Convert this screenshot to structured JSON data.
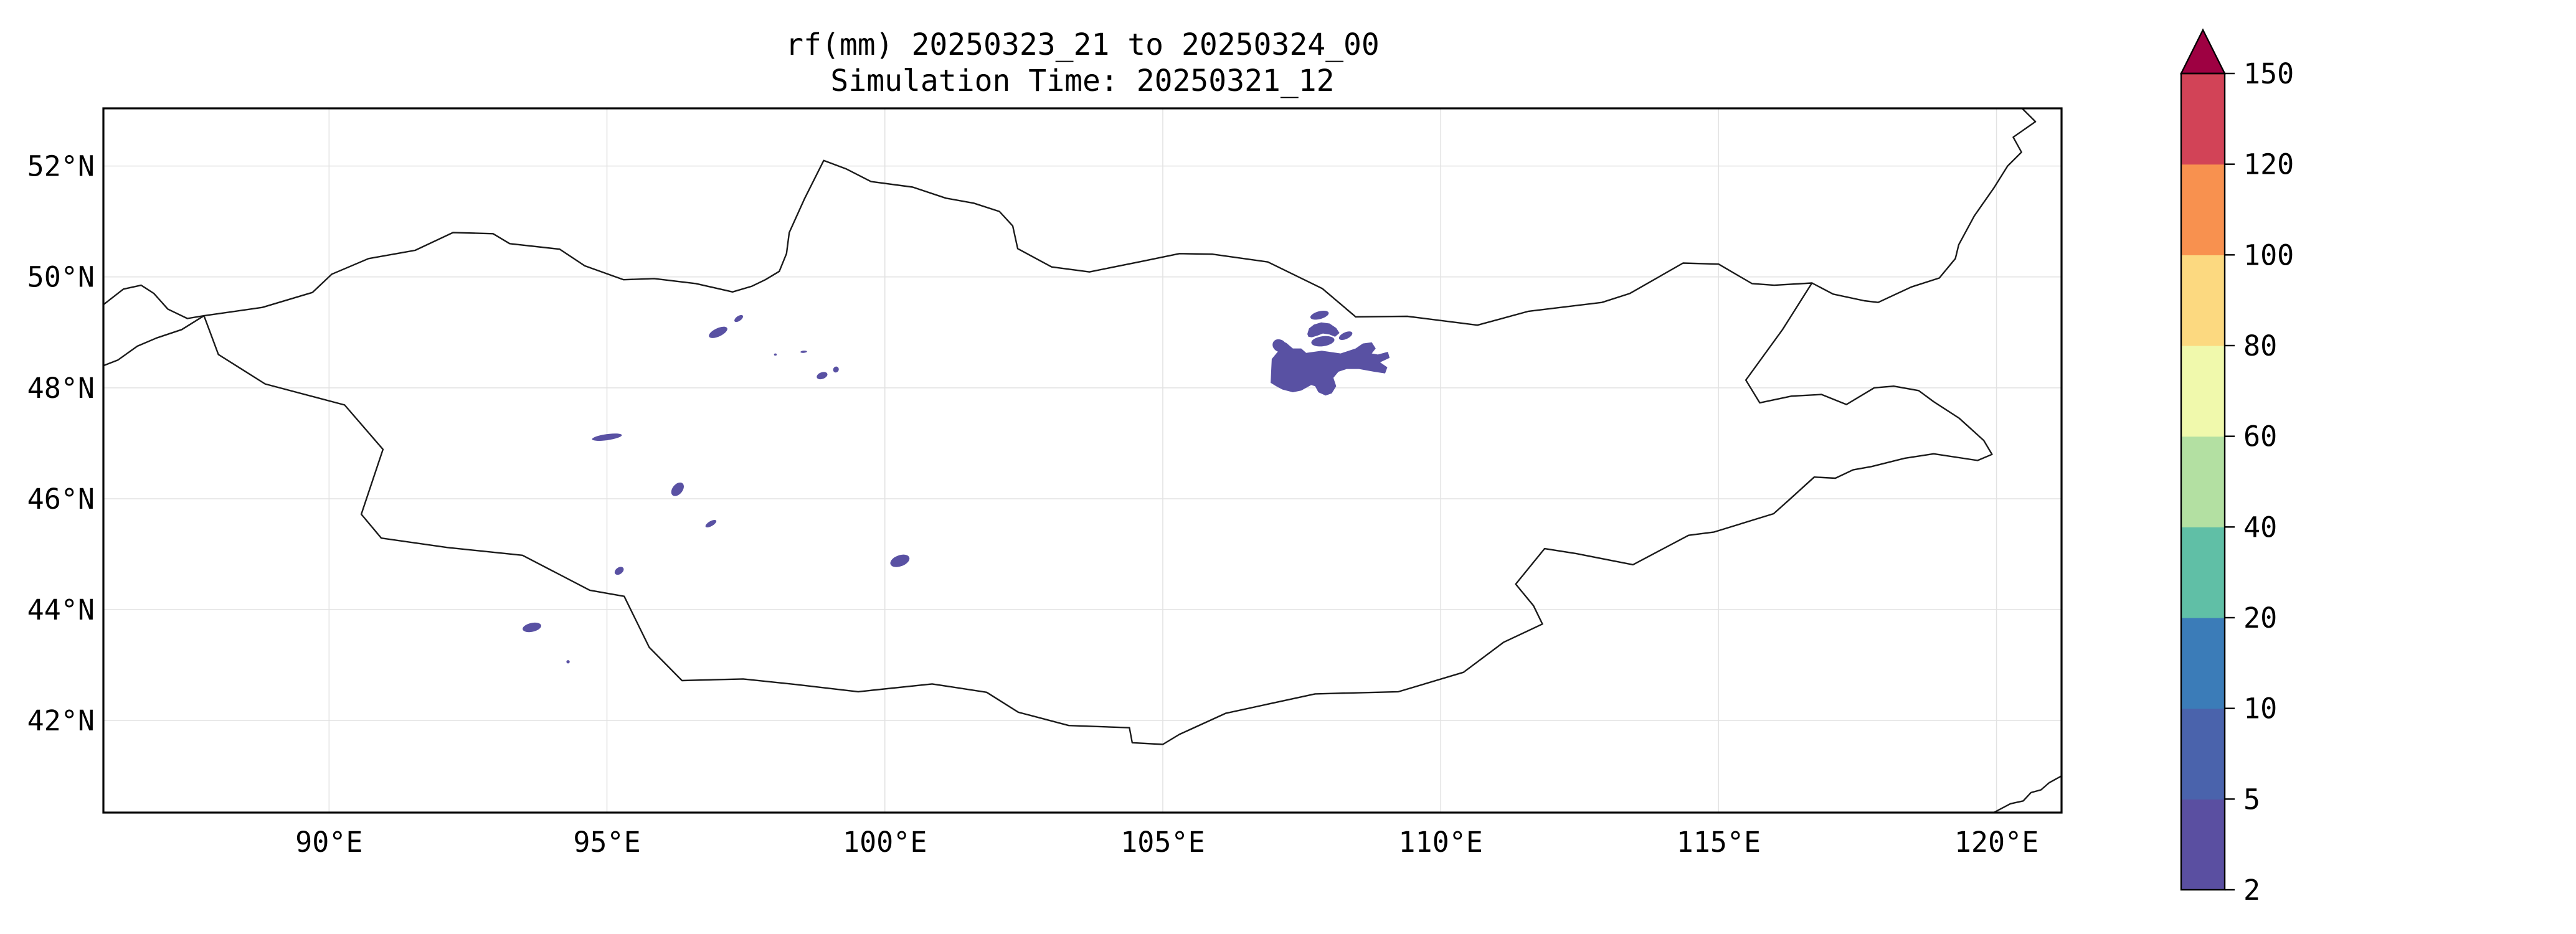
{
  "title": {
    "line1": "rf(mm) 20250323_21 to 20250324_00",
    "line2": "Simulation Time: 20250321_12"
  },
  "axes": {
    "x_ticks": [
      {
        "label": "90°E",
        "lon": 90
      },
      {
        "label": "95°E",
        "lon": 95
      },
      {
        "label": "100°E",
        "lon": 100
      },
      {
        "label": "105°E",
        "lon": 105
      },
      {
        "label": "110°E",
        "lon": 110
      },
      {
        "label": "115°E",
        "lon": 115
      },
      {
        "label": "120°E",
        "lon": 120
      }
    ],
    "y_ticks": [
      {
        "label": "52°N",
        "lat": 52
      },
      {
        "label": "50°N",
        "lat": 50
      },
      {
        "label": "48°N",
        "lat": 48
      },
      {
        "label": "46°N",
        "lat": 46
      },
      {
        "label": "44°N",
        "lat": 44
      },
      {
        "label": "42°N",
        "lat": 42
      }
    ],
    "grid_on": true
  },
  "colorbar": {
    "orientation": "vertical",
    "extend": "max",
    "levels": [
      2,
      5,
      10,
      20,
      40,
      60,
      80,
      100,
      120,
      150
    ],
    "tick_labels": [
      "2",
      "5",
      "10",
      "20",
      "40",
      "60",
      "80",
      "100",
      "120",
      "150"
    ],
    "segment_colors": [
      "#5a4fa1",
      "#4a63ac",
      "#3b7cb8",
      "#60bfa6",
      "#b3e0a2",
      "#f0f9ac",
      "#fcd980",
      "#f8914f",
      "#d24357"
    ],
    "arrow_color": "#9e0142",
    "outline_color": "#000000"
  },
  "map": {
    "projection": "PlateCarree",
    "extent": {
      "lon_min": 85.94,
      "lon_max": 121.17,
      "lat_min": 40.34,
      "lat_max": 53.04
    },
    "colors": {
      "border": "#1a1a1a",
      "grid": "#e2e2e2",
      "frame": "#000000",
      "background": "#ffffff"
    },
    "borders": {
      "mongolia": [
        [
          87.75,
          49.3
        ],
        [
          88.8,
          49.45
        ],
        [
          89.7,
          49.72
        ],
        [
          90.05,
          50.05
        ],
        [
          90.71,
          50.33
        ],
        [
          91.55,
          50.48
        ],
        [
          92.23,
          50.8
        ],
        [
          92.95,
          50.78
        ],
        [
          93.25,
          50.6
        ],
        [
          94.15,
          50.5
        ],
        [
          94.6,
          50.2
        ],
        [
          95.3,
          49.95
        ],
        [
          95.85,
          49.97
        ],
        [
          96.6,
          49.88
        ],
        [
          97.26,
          49.73
        ],
        [
          97.6,
          49.83
        ],
        [
          97.85,
          49.95
        ],
        [
          98.1,
          50.1
        ],
        [
          98.23,
          50.42
        ],
        [
          98.28,
          50.8
        ],
        [
          98.55,
          51.4
        ],
        [
          98.9,
          52.1
        ],
        [
          99.3,
          51.95
        ],
        [
          99.75,
          51.72
        ],
        [
          100.5,
          51.62
        ],
        [
          101.1,
          51.42
        ],
        [
          101.6,
          51.33
        ],
        [
          102.06,
          51.18
        ],
        [
          102.3,
          50.92
        ],
        [
          102.39,
          50.51
        ],
        [
          103.0,
          50.18
        ],
        [
          103.68,
          50.09
        ],
        [
          104.62,
          50.28
        ],
        [
          105.3,
          50.42
        ],
        [
          105.89,
          50.41
        ],
        [
          106.89,
          50.27
        ],
        [
          107.87,
          49.79
        ],
        [
          108.47,
          49.28
        ],
        [
          109.4,
          49.29
        ],
        [
          110.66,
          49.13
        ],
        [
          111.58,
          49.38
        ],
        [
          112.9,
          49.54
        ],
        [
          113.4,
          49.7
        ],
        [
          114.36,
          50.25
        ],
        [
          115.0,
          50.23
        ],
        [
          115.6,
          49.88
        ],
        [
          116.0,
          49.85
        ],
        [
          116.68,
          49.89
        ],
        [
          116.15,
          49.05
        ],
        [
          115.49,
          48.14
        ],
        [
          115.74,
          47.73
        ],
        [
          116.31,
          47.85
        ],
        [
          116.85,
          47.88
        ],
        [
          117.3,
          47.7
        ],
        [
          117.8,
          48.0
        ],
        [
          118.15,
          48.03
        ],
        [
          118.6,
          47.95
        ],
        [
          118.87,
          47.75
        ],
        [
          119.33,
          47.45
        ],
        [
          119.77,
          47.05
        ],
        [
          119.92,
          46.8
        ],
        [
          119.66,
          46.69
        ],
        [
          118.87,
          46.81
        ],
        [
          118.35,
          46.73
        ],
        [
          117.75,
          46.58
        ],
        [
          117.42,
          46.52
        ],
        [
          117.1,
          46.37
        ],
        [
          116.72,
          46.39
        ],
        [
          116.27,
          45.98
        ],
        [
          115.99,
          45.73
        ],
        [
          114.92,
          45.4
        ],
        [
          114.46,
          45.34
        ],
        [
          113.46,
          44.81
        ],
        [
          112.44,
          45.01
        ],
        [
          111.87,
          45.1
        ],
        [
          111.35,
          44.46
        ],
        [
          111.67,
          44.07
        ],
        [
          111.83,
          43.74
        ],
        [
          111.13,
          43.41
        ],
        [
          110.41,
          42.87
        ],
        [
          109.24,
          42.52
        ],
        [
          107.74,
          42.48
        ],
        [
          106.13,
          42.13
        ],
        [
          105.3,
          41.75
        ],
        [
          105.0,
          41.57
        ],
        [
          104.45,
          41.6
        ],
        [
          104.4,
          41.87
        ],
        [
          103.31,
          41.91
        ],
        [
          102.4,
          42.15
        ],
        [
          101.83,
          42.51
        ],
        [
          100.85,
          42.66
        ],
        [
          99.52,
          42.52
        ],
        [
          98.4,
          42.65
        ],
        [
          97.45,
          42.75
        ],
        [
          96.35,
          42.72
        ],
        [
          95.76,
          43.32
        ],
        [
          95.31,
          44.24
        ],
        [
          94.69,
          44.35
        ],
        [
          93.48,
          44.98
        ],
        [
          92.13,
          45.12
        ],
        [
          90.94,
          45.29
        ],
        [
          90.58,
          45.72
        ],
        [
          90.97,
          46.89
        ],
        [
          90.28,
          47.69
        ],
        [
          88.85,
          48.07
        ],
        [
          88.01,
          48.6
        ],
        [
          87.75,
          49.3
        ]
      ],
      "russia_border_west": [
        [
          85.94,
          49.5
        ],
        [
          86.3,
          49.78
        ],
        [
          86.62,
          49.85
        ],
        [
          86.85,
          49.7
        ],
        [
          87.1,
          49.42
        ],
        [
          87.45,
          49.25
        ],
        [
          87.75,
          49.3
        ]
      ],
      "kazakh_china_border_west": [
        [
          87.75,
          49.3
        ],
        [
          87.35,
          49.05
        ],
        [
          86.9,
          48.9
        ],
        [
          86.55,
          48.75
        ],
        [
          86.2,
          48.5
        ],
        [
          85.94,
          48.4
        ]
      ],
      "russia_china_border_northeast": [
        [
          116.68,
          49.89
        ],
        [
          117.06,
          49.69
        ],
        [
          117.62,
          49.57
        ],
        [
          117.87,
          49.54
        ],
        [
          118.47,
          49.82
        ],
        [
          118.97,
          49.98
        ],
        [
          119.26,
          50.33
        ],
        [
          119.32,
          50.58
        ],
        [
          119.6,
          51.1
        ],
        [
          119.95,
          51.6
        ],
        [
          120.2,
          52.0
        ],
        [
          120.45,
          52.25
        ],
        [
          120.3,
          52.52
        ],
        [
          120.7,
          52.8
        ],
        [
          120.46,
          53.04
        ]
      ],
      "bohai_coast_southeast": [
        [
          119.95,
          40.34
        ],
        [
          120.25,
          40.5
        ],
        [
          120.48,
          40.55
        ],
        [
          120.62,
          40.7
        ],
        [
          120.8,
          40.75
        ],
        [
          120.95,
          40.88
        ],
        [
          121.17,
          41.0
        ]
      ]
    }
  },
  "rainfall": {
    "field": "rf",
    "units": "mm",
    "patch_value_interval": "2-5",
    "patch_color": "#5951a3",
    "ellipses": [
      {
        "lon": 97.37,
        "lat": 49.25,
        "rx": 0.09,
        "ry": 0.045,
        "rot": -35
      },
      {
        "lon": 97.0,
        "lat": 49.0,
        "rx": 0.18,
        "ry": 0.075,
        "rot": -25
      },
      {
        "lon": 98.03,
        "lat": 48.6,
        "rx": 0.025,
        "ry": 0.02,
        "rot": 0
      },
      {
        "lon": 98.54,
        "lat": 48.65,
        "rx": 0.06,
        "ry": 0.02,
        "rot": -5
      },
      {
        "lon": 99.12,
        "lat": 48.33,
        "rx": 0.055,
        "ry": 0.05,
        "rot": -60
      },
      {
        "lon": 98.87,
        "lat": 48.22,
        "rx": 0.1,
        "ry": 0.06,
        "rot": -20
      },
      {
        "lon": 96.27,
        "lat": 46.17,
        "rx": 0.14,
        "ry": 0.09,
        "rot": -50
      },
      {
        "lon": 96.87,
        "lat": 45.55,
        "rx": 0.11,
        "ry": 0.045,
        "rot": -30
      },
      {
        "lon": 100.27,
        "lat": 44.88,
        "rx": 0.18,
        "ry": 0.1,
        "rot": -20
      },
      {
        "lon": 95.0,
        "lat": 47.11,
        "rx": 0.27,
        "ry": 0.055,
        "rot": -8
      },
      {
        "lon": 95.22,
        "lat": 44.7,
        "rx": 0.09,
        "ry": 0.06,
        "rot": -35
      },
      {
        "lon": 93.65,
        "lat": 43.68,
        "rx": 0.17,
        "ry": 0.08,
        "rot": -12
      },
      {
        "lon": 94.3,
        "lat": 43.06,
        "rx": 0.03,
        "ry": 0.03,
        "rot": 0
      },
      {
        "lon": 107.82,
        "lat": 49.31,
        "rx": 0.17,
        "ry": 0.07,
        "rot": -15
      },
      {
        "lon": 108.29,
        "lat": 48.94,
        "rx": 0.13,
        "ry": 0.06,
        "rot": -25
      },
      {
        "lon": 107.1,
        "lat": 48.76,
        "rx": 0.13,
        "ry": 0.11,
        "rot": 30
      },
      {
        "lon": 107.88,
        "lat": 48.84,
        "rx": 0.21,
        "ry": 0.09,
        "rot": -8
      }
    ],
    "polygons": {
      "hook_band": [
        [
          107.6,
          48.97
        ],
        [
          107.63,
          49.07
        ],
        [
          107.72,
          49.14
        ],
        [
          107.85,
          49.18
        ],
        [
          108.0,
          49.16
        ],
        [
          108.12,
          49.08
        ],
        [
          108.18,
          48.99
        ],
        [
          108.1,
          48.92
        ],
        [
          108.0,
          48.96
        ],
        [
          107.88,
          48.98
        ],
        [
          107.78,
          48.94
        ],
        [
          107.68,
          48.91
        ],
        [
          107.62,
          48.92
        ]
      ],
      "main_blob": [
        [
          106.94,
          48.09
        ],
        [
          106.96,
          48.52
        ],
        [
          107.21,
          48.82
        ],
        [
          107.34,
          48.71
        ],
        [
          107.49,
          48.71
        ],
        [
          107.58,
          48.63
        ],
        [
          107.86,
          48.67
        ],
        [
          108.2,
          48.62
        ],
        [
          108.47,
          48.71
        ],
        [
          108.6,
          48.8
        ],
        [
          108.76,
          48.82
        ],
        [
          108.83,
          48.71
        ],
        [
          108.76,
          48.62
        ],
        [
          108.87,
          48.6
        ],
        [
          109.05,
          48.65
        ],
        [
          109.08,
          48.54
        ],
        [
          108.91,
          48.46
        ],
        [
          109.04,
          48.37
        ],
        [
          109.0,
          48.26
        ],
        [
          108.8,
          48.29
        ],
        [
          108.53,
          48.34
        ],
        [
          108.31,
          48.34
        ],
        [
          108.16,
          48.29
        ],
        [
          108.07,
          48.18
        ],
        [
          108.12,
          48.03
        ],
        [
          108.04,
          47.9
        ],
        [
          107.93,
          47.86
        ],
        [
          107.8,
          47.92
        ],
        [
          107.74,
          48.03
        ],
        [
          107.67,
          48.05
        ],
        [
          107.49,
          47.95
        ],
        [
          107.34,
          47.92
        ],
        [
          107.15,
          47.97
        ],
        [
          107.04,
          48.03
        ]
      ]
    }
  }
}
